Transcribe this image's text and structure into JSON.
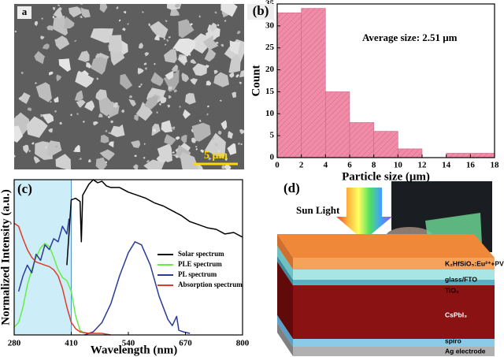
{
  "chart_data": [
    {
      "type": "histogram",
      "panel_label": "(b)",
      "annotation": "Average size: 2.51  μm",
      "xlabel": "Particle size (μm)",
      "ylabel": "Count",
      "bins": [
        0,
        2,
        4,
        6,
        8,
        10,
        12,
        14,
        16,
        18
      ],
      "values": [
        33,
        34,
        15,
        8,
        6,
        2,
        0,
        1,
        1
      ],
      "color": "#f08ca8",
      "xlim": [
        0,
        18
      ],
      "ylim": [
        0,
        35
      ],
      "xticks": [
        0,
        2,
        4,
        6,
        8,
        10,
        12,
        14,
        16,
        18
      ],
      "yticks": [
        0,
        5,
        10,
        15,
        20,
        25,
        30,
        35
      ]
    },
    {
      "type": "line",
      "panel_label": "(c)",
      "xlabel": "Wavelength (nm)",
      "ylabel": "Normalized Intensity (a.u.)",
      "xlim": [
        280,
        800
      ],
      "ylim": [
        0,
        1
      ],
      "xticks": [
        280,
        410,
        540,
        670,
        800
      ],
      "shaded_range": [
        280,
        410
      ],
      "shade_color": "#cdeef8",
      "series": [
        {
          "name": "Solar spectrum",
          "color": "#000000",
          "x": [
            400,
            410,
            420,
            430,
            433,
            436,
            450,
            460,
            470,
            480,
            490,
            500,
            520,
            540,
            560,
            580,
            600,
            620,
            640,
            660,
            680,
            700,
            720,
            740,
            760,
            780,
            800
          ],
          "values": [
            0.45,
            0.87,
            0.88,
            0.86,
            0.6,
            0.9,
            0.97,
            1.0,
            0.98,
            0.99,
            0.96,
            0.95,
            0.95,
            0.92,
            0.9,
            0.88,
            0.85,
            0.83,
            0.8,
            0.77,
            0.73,
            0.71,
            0.69,
            0.68,
            0.65,
            0.66,
            0.63
          ]
        },
        {
          "name": "PLE spectrum",
          "color": "#66ee44",
          "x": [
            280,
            290,
            300,
            310,
            320,
            330,
            340,
            350,
            360,
            370,
            380,
            390,
            400,
            410,
            420,
            430,
            440
          ],
          "values": [
            0.05,
            0.08,
            0.18,
            0.32,
            0.42,
            0.5,
            0.56,
            0.59,
            0.57,
            0.5,
            0.42,
            0.37,
            0.35,
            0.28,
            0.12,
            0.03,
            0.01
          ]
        },
        {
          "name": "PL spectrum",
          "color": "#2a3a99",
          "x": [
            290,
            300,
            310,
            320,
            330,
            340,
            350,
            360,
            370,
            380,
            390,
            400,
            405,
            420,
            440,
            460,
            480,
            500,
            520,
            540,
            555,
            570,
            590,
            610,
            630,
            640,
            650,
            655,
            665,
            680
          ],
          "values": [
            0.28,
            0.38,
            0.45,
            0.4,
            0.52,
            0.48,
            0.58,
            0.55,
            0.62,
            0.6,
            0.7,
            0.65,
            0.75,
            null,
            0.0,
            0.02,
            0.08,
            0.2,
            0.38,
            0.53,
            0.6,
            0.58,
            0.45,
            0.25,
            0.1,
            0.06,
            0.12,
            0.03,
            0.02,
            0.01
          ]
        },
        {
          "name": "Absorption spectrum",
          "color": "#e03a2a",
          "x": [
            280,
            290,
            300,
            310,
            320,
            330,
            340,
            350,
            360,
            370,
            380,
            390,
            400,
            410,
            420,
            430,
            450,
            480,
            500
          ],
          "values": [
            0.72,
            0.7,
            0.62,
            0.55,
            0.5,
            0.47,
            0.46,
            0.45,
            0.44,
            0.42,
            0.38,
            0.3,
            0.18,
            0.08,
            0.04,
            0.02,
            0.01,
            0.01,
            0.0
          ]
        }
      ]
    }
  ],
  "sem_image": {
    "panel_label": "a",
    "scale_bar": "5 μm"
  },
  "device_diagram": {
    "panel_label": "(d)",
    "light_label": "Sun Light",
    "layers": [
      "K₂HfSiO₅:Eu²⁺+PVP",
      "glass/FTO",
      "TiO₂",
      "CsPbI₃",
      "spiro",
      "Ag electrode"
    ]
  }
}
